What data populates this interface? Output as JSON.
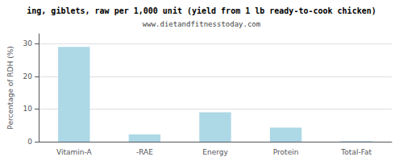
{
  "chart_data": {
    "type": "bar",
    "title": "ing, giblets, raw per 1,000 unit (yield from 1 lb ready-to-cook chicken)",
    "subtitle": "www.dietandfitnesstoday.com",
    "ylabel": "Percentage of RDH (%)",
    "categories": [
      "Vitamin-A",
      "-RAE",
      "Energy",
      "Protein",
      "Total-Fat"
    ],
    "values": [
      29.0,
      2.2,
      9.0,
      4.3,
      0.2
    ],
    "color": "#add8e6",
    "ylim": [
      0,
      33
    ],
    "yticks": [
      0,
      10,
      20,
      30
    ],
    "grid": true
  }
}
